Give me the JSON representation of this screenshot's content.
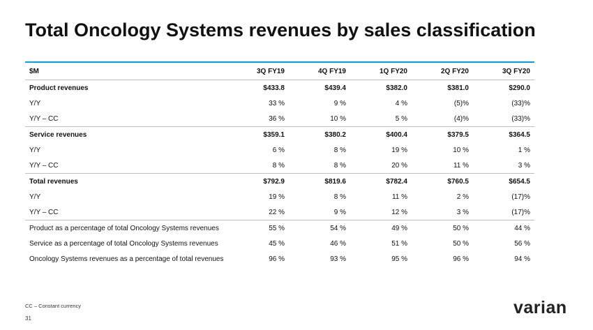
{
  "page": {
    "title": "Total Oncology Systems revenues by sales classification",
    "footnote": "CC – Constant currency",
    "page_number": "31",
    "logo_text": "varian"
  },
  "table": {
    "headers": [
      "$M",
      "3Q FY19",
      "4Q FY19",
      "1Q FY20",
      "2Q FY20",
      "3Q FY20"
    ],
    "rows": [
      {
        "label": "Product revenues",
        "values": [
          "$433.8",
          "$439.4",
          "$382.0",
          "$381.0",
          "$290.0"
        ]
      },
      {
        "label": "Y/Y",
        "values": [
          "33 %",
          "9 %",
          "4 %",
          "(5)%",
          "(33)%"
        ]
      },
      {
        "label": "Y/Y – CC",
        "values": [
          "36 %",
          "10 %",
          "5 %",
          "(4)%",
          "(33)%"
        ]
      },
      {
        "label": "Service revenues",
        "values": [
          "$359.1",
          "$380.2",
          "$400.4",
          "$379.5",
          "$364.5"
        ]
      },
      {
        "label": "Y/Y",
        "values": [
          "6 %",
          "8 %",
          "19 %",
          "10 %",
          "1 %"
        ]
      },
      {
        "label": "Y/Y – CC",
        "values": [
          "8 %",
          "8 %",
          "20 %",
          "11 %",
          "3 %"
        ]
      },
      {
        "label": "Total revenues",
        "values": [
          "$792.9",
          "$819.6",
          "$782.4",
          "$760.5",
          "$654.5"
        ]
      },
      {
        "label": "Y/Y",
        "values": [
          "19 %",
          "8 %",
          "11 %",
          "2 %",
          "(17)%"
        ]
      },
      {
        "label": "Y/Y – CC",
        "values": [
          "22 %",
          "9 %",
          "12 %",
          "3 %",
          "(17)%"
        ]
      },
      {
        "label": "Product as a percentage of total Oncology Systems revenues",
        "values": [
          "55 %",
          "54 %",
          "49 %",
          "50 %",
          "44 %"
        ]
      },
      {
        "label": "Service as a percentage of total Oncology Systems revenues",
        "values": [
          "45 %",
          "46 %",
          "51 %",
          "50 %",
          "56 %"
        ]
      },
      {
        "label": "Oncology Systems revenues as a percentage of total revenues",
        "values": [
          "96 %",
          "93 %",
          "95 %",
          "96 %",
          "94 %"
        ]
      }
    ]
  }
}
